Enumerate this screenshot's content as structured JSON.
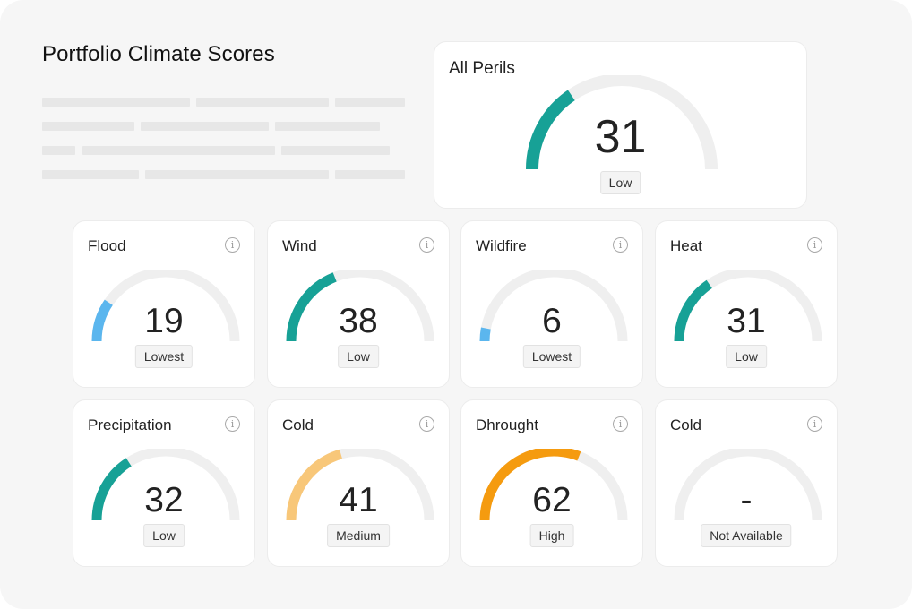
{
  "header": {
    "title": "Portfolio Climate Scores"
  },
  "summary": {
    "title": "All Perils",
    "score": "31",
    "score_value": 31,
    "label": "Low",
    "color": "#17a196"
  },
  "info_icon": "info-icon",
  "perils": [
    {
      "title": "Flood",
      "score": "19",
      "score_value": 19,
      "label": "Lowest",
      "color": "#5bb6ee"
    },
    {
      "title": "Wind",
      "score": "38",
      "score_value": 38,
      "label": "Low",
      "color": "#17a196"
    },
    {
      "title": "Wildfire",
      "score": "6",
      "score_value": 6,
      "label": "Lowest",
      "color": "#5bb6ee"
    },
    {
      "title": "Heat",
      "score": "31",
      "score_value": 31,
      "label": "Low",
      "color": "#17a196"
    },
    {
      "title": "Precipitation",
      "score": "32",
      "score_value": 32,
      "label": "Low",
      "color": "#17a196"
    },
    {
      "title": "Cold",
      "score": "41",
      "score_value": 41,
      "label": "Medium",
      "color": "#f8c779"
    },
    {
      "title": "Dhrought",
      "score": "62",
      "score_value": 62,
      "label": "High",
      "color": "#f59b0f"
    },
    {
      "title": "Cold",
      "score": "-",
      "score_value": null,
      "label": "Not Available",
      "color": "#e4e4e4"
    }
  ],
  "colors": {
    "track": "#efefef",
    "lowest": "#5bb6ee",
    "low": "#17a196",
    "medium": "#f8c779",
    "high": "#f59b0f"
  }
}
